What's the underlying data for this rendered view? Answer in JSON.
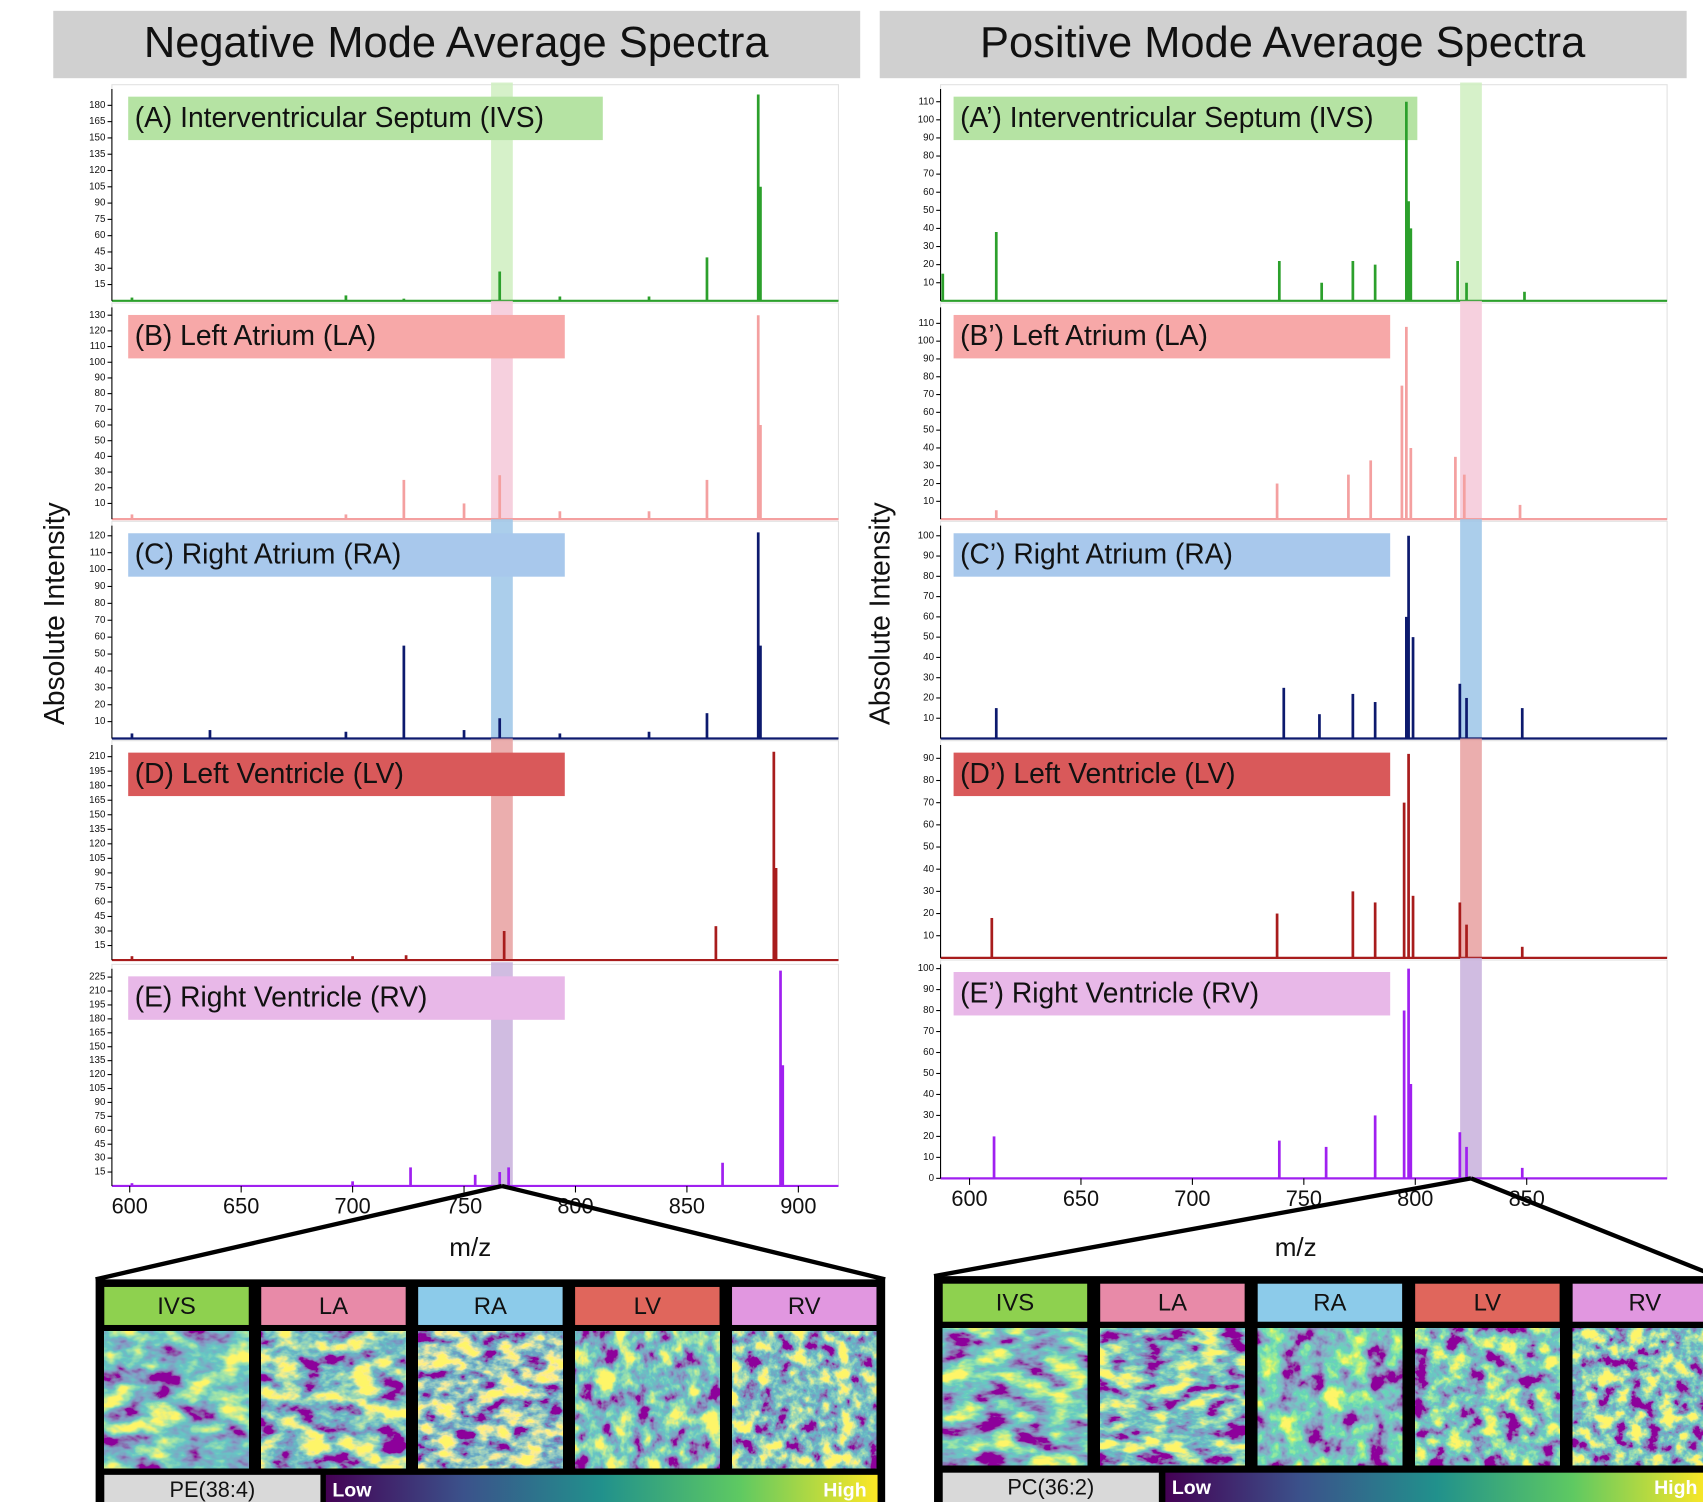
{
  "columns": [
    {
      "title": "Negative Mode Average Spectra",
      "ylabel": "Absolute Intensity",
      "xlabel": "m/z",
      "compound": "PE(38:4)",
      "low": "Low",
      "high": "High",
      "tissues": [
        {
          "name": "IVS",
          "color": "#8ed14f"
        },
        {
          "name": "LA",
          "color": "#e88aa8"
        },
        {
          "name": "RA",
          "color": "#8ccbea"
        },
        {
          "name": "LV",
          "color": "#e0665c"
        },
        {
          "name": "RV",
          "color": "#e197e0"
        }
      ]
    },
    {
      "title": "Positive Mode Average Spectra",
      "ylabel": "Absolute Intensity",
      "xlabel": "m/z",
      "compound": "PC(36:2)",
      "low": "Low",
      "high": "High",
      "tissues": [
        {
          "name": "IVS",
          "color": "#8ed14f"
        },
        {
          "name": "LA",
          "color": "#e88aa8"
        },
        {
          "name": "RA",
          "color": "#8ccbea"
        },
        {
          "name": "LV",
          "color": "#e0665c"
        },
        {
          "name": "RV",
          "color": "#e197e0"
        }
      ]
    }
  ],
  "chart_data": [
    {
      "type": "stem",
      "title": "(A) Interventricular Septum (IVS)",
      "color": "#2ca02c",
      "label_color": "#b5e3a3",
      "band_color": "#cfeec0",
      "highlight": 767,
      "x": [
        601,
        697,
        723,
        766,
        793,
        833,
        859,
        882,
        883
      ],
      "values": [
        3,
        5,
        2,
        27,
        4,
        4,
        40,
        190,
        105
      ],
      "xlim": [
        592,
        918
      ],
      "ylim": [
        0,
        195
      ],
      "yticks": [
        15,
        30,
        45,
        60,
        75,
        90,
        105,
        120,
        135,
        150,
        165,
        180
      ]
    },
    {
      "type": "stem",
      "title": "(B) Left Atrium (LA)",
      "color": "#f4a0a0",
      "label_color": "#f7a8a8",
      "band_color": "#f5c8d8",
      "highlight": 767,
      "x": [
        601,
        697,
        723,
        750,
        766,
        793,
        833,
        859,
        882,
        883
      ],
      "values": [
        3,
        3,
        25,
        10,
        28,
        5,
        5,
        25,
        130,
        60
      ],
      "xlim": [
        592,
        918
      ],
      "ylim": [
        0,
        135
      ],
      "yticks": [
        10,
        20,
        30,
        40,
        50,
        60,
        70,
        80,
        90,
        100,
        110,
        120,
        130
      ]
    },
    {
      "type": "stem",
      "title": "(C) Right Atrium (RA)",
      "color": "#0d1a6e",
      "label_color": "#a8c8ec",
      "band_color": "#9cc6e8",
      "highlight": 767,
      "x": [
        601,
        636,
        697,
        723,
        750,
        766,
        793,
        833,
        859,
        882,
        883
      ],
      "values": [
        3,
        5,
        4,
        55,
        5,
        12,
        3,
        4,
        15,
        122,
        55
      ],
      "xlim": [
        592,
        918
      ],
      "ylim": [
        0,
        126
      ],
      "yticks": [
        10,
        20,
        30,
        40,
        50,
        60,
        70,
        80,
        90,
        100,
        110,
        120
      ]
    },
    {
      "type": "stem",
      "title": "(D) Left Ventricle (LV)",
      "color": "#a81c1c",
      "label_color": "#d9595a",
      "band_color": "#e8a0a0",
      "highlight": 767,
      "x": [
        601,
        700,
        724,
        768,
        863,
        889,
        890
      ],
      "values": [
        4,
        4,
        5,
        30,
        35,
        215,
        95
      ],
      "xlim": [
        592,
        918
      ],
      "ylim": [
        0,
        222
      ],
      "yticks": [
        15,
        30,
        45,
        60,
        75,
        90,
        105,
        120,
        135,
        150,
        165,
        180,
        195,
        210
      ]
    },
    {
      "type": "stem",
      "title": "(E) Right Ventricle (RV)",
      "color": "#a020f0",
      "label_color": "#e8b8e8",
      "band_color": "#c8b0dc",
      "highlight": 767,
      "x": [
        601,
        700,
        726,
        755,
        766,
        770,
        866,
        892,
        893
      ],
      "values": [
        3,
        5,
        20,
        12,
        15,
        20,
        25,
        232,
        130
      ],
      "xlim": [
        592,
        918
      ],
      "ylim": [
        0,
        234
      ],
      "yticks": [
        15,
        30,
        45,
        60,
        75,
        90,
        105,
        120,
        135,
        150,
        165,
        180,
        195,
        210,
        225
      ],
      "xticks": [
        600,
        650,
        700,
        750,
        800,
        850,
        900
      ]
    },
    {
      "type": "stem",
      "title": "(A’) Interventricular Septum (IVS)",
      "color": "#2ca02c",
      "label_color": "#b5e3a3",
      "band_color": "#cfeec0",
      "highlight": 825,
      "x": [
        588,
        612,
        739,
        758,
        772,
        782,
        796,
        797,
        798,
        819,
        823,
        849
      ],
      "values": [
        15,
        38,
        22,
        10,
        22,
        20,
        110,
        55,
        40,
        22,
        10,
        5
      ],
      "xlim": [
        587,
        913
      ],
      "ylim": [
        0,
        117
      ],
      "yticks": [
        10,
        20,
        30,
        40,
        50,
        60,
        70,
        80,
        90,
        100,
        110
      ]
    },
    {
      "type": "stem",
      "title": "(B’) Left Atrium (LA)",
      "color": "#f4a0a0",
      "label_color": "#f7a8a8",
      "band_color": "#f5c8d8",
      "highlight": 825,
      "x": [
        612,
        738,
        770,
        780,
        794,
        796,
        798,
        818,
        822,
        847
      ],
      "values": [
        5,
        20,
        25,
        33,
        75,
        108,
        40,
        35,
        25,
        8
      ],
      "xlim": [
        587,
        913
      ],
      "ylim": [
        0,
        119
      ],
      "yticks": [
        10,
        20,
        30,
        40,
        50,
        60,
        70,
        80,
        90,
        100,
        110
      ]
    },
    {
      "type": "stem",
      "title": "(C’) Right Atrium (RA)",
      "color": "#0d1a6e",
      "label_color": "#a8c8ec",
      "band_color": "#9cc6e8",
      "highlight": 825,
      "x": [
        612,
        741,
        757,
        772,
        782,
        796,
        797,
        799,
        820,
        823,
        848
      ],
      "values": [
        15,
        25,
        12,
        22,
        18,
        60,
        100,
        50,
        27,
        20,
        15
      ],
      "xlim": [
        587,
        913
      ],
      "ylim": [
        0,
        105
      ],
      "yticks": [
        10,
        20,
        30,
        40,
        50,
        60,
        70,
        80,
        90,
        100
      ]
    },
    {
      "type": "stem",
      "title": "(D’) Left Ventricle (LV)",
      "color": "#a81c1c",
      "label_color": "#d9595a",
      "band_color": "#e8a0a0",
      "highlight": 825,
      "x": [
        610,
        738,
        772,
        782,
        795,
        797,
        799,
        820,
        823,
        848
      ],
      "values": [
        18,
        20,
        30,
        25,
        70,
        92,
        28,
        25,
        15,
        5
      ],
      "xlim": [
        587,
        913
      ],
      "ylim": [
        0,
        96
      ],
      "yticks": [
        10,
        20,
        30,
        40,
        50,
        60,
        70,
        80,
        90
      ]
    },
    {
      "type": "stem",
      "title": "(E’) Right Ventricle (RV)",
      "color": "#a020f0",
      "label_color": "#e8b8e8",
      "band_color": "#c8b0dc",
      "highlight": 825,
      "x": [
        611,
        739,
        760,
        782,
        795,
        797,
        798,
        820,
        823,
        848
      ],
      "values": [
        20,
        18,
        15,
        30,
        80,
        100,
        45,
        22,
        15,
        5
      ],
      "xlim": [
        587,
        913
      ],
      "ylim": [
        0,
        102
      ],
      "yticks": [
        0,
        10,
        20,
        30,
        40,
        50,
        60,
        70,
        80,
        90,
        100
      ],
      "xticks": [
        600,
        650,
        700,
        750,
        800,
        850
      ]
    }
  ]
}
